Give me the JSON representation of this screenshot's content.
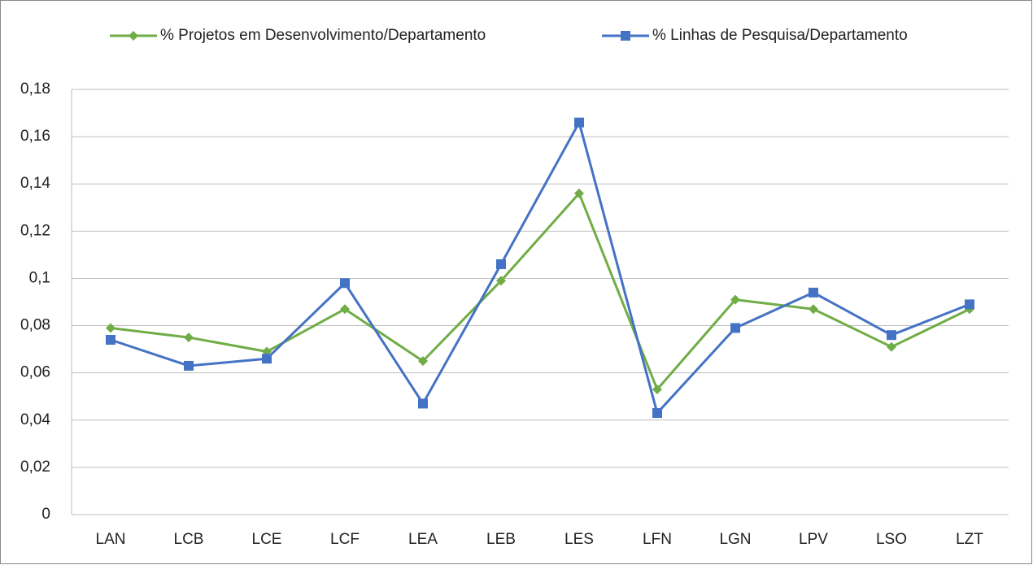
{
  "chart_data": {
    "type": "line",
    "categories": [
      "LAN",
      "LCB",
      "LCE",
      "LCF",
      "LEA",
      "LEB",
      "LES",
      "LFN",
      "LGN",
      "LPV",
      "LSO",
      "LZT"
    ],
    "series": [
      {
        "name": "% Projetos em Desenvolvimento/Departamento",
        "color": "#70ad47",
        "marker": "diamond",
        "values": [
          0.079,
          0.075,
          0.069,
          0.087,
          0.065,
          0.099,
          0.136,
          0.053,
          0.091,
          0.087,
          0.071,
          0.087
        ]
      },
      {
        "name": "% Linhas de Pesquisa/Departamento",
        "color": "#4472c4",
        "marker": "square",
        "values": [
          0.074,
          0.063,
          0.066,
          0.098,
          0.047,
          0.106,
          0.166,
          0.043,
          0.079,
          0.094,
          0.076,
          0.089
        ]
      }
    ],
    "ylim": [
      0,
      0.18
    ],
    "yticks": [
      0,
      {
        "value": 0.02,
        "label": "0,02"
      },
      {
        "value": 0.04,
        "label": "0,04"
      },
      {
        "value": 0.06,
        "label": "0,06"
      },
      {
        "value": 0.08,
        "label": "0,08"
      },
      {
        "value": 0.1,
        "label": "0,1"
      },
      {
        "value": 0.12,
        "label": "0,12"
      },
      {
        "value": 0.14,
        "label": "0,14"
      },
      {
        "value": 0.16,
        "label": "0,16"
      },
      {
        "value": 0.18,
        "label": "0,18"
      }
    ],
    "grid": true,
    "legend": "top"
  }
}
